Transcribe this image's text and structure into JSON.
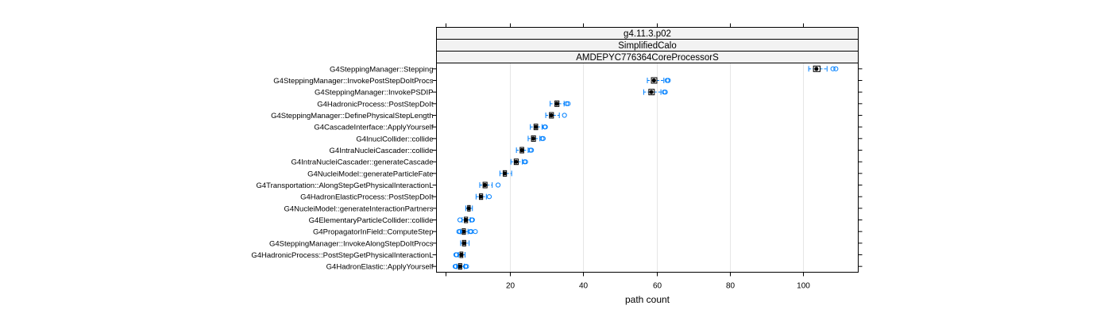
{
  "chart_data": {
    "type": "box",
    "strips": [
      "g4.11.3.p02",
      "SimplifiedCalo",
      "AMDEPYC776364CoreProcessorS"
    ],
    "xlabel": "path count",
    "xlim": [
      0,
      115
    ],
    "xticks": [
      20,
      40,
      60,
      80,
      100
    ],
    "grid": true,
    "colors": {
      "box": "#000000",
      "whisker": "#0080ff",
      "outlier": "#0080ff",
      "grid": "#e6e6e6",
      "strip": "#f2f2f2"
    },
    "categories": [
      "G4SteppingManager::Stepping",
      "G4SteppingManager::InvokePostStepDoItProcs",
      "G4SteppingManager::InvokePSDIP",
      "G4HadronicProcess::PostStepDoIt",
      "G4SteppingManager::DefinePhysicalStepLength",
      "G4CascadeInterface::ApplyYourself",
      "G4InuclCollider::collide",
      "G4IntraNucleiCascader::collide",
      "G4IntraNucleiCascader::generateCascade",
      "G4NucleiModel::generateParticleFate",
      "G4Transportation::AlongStepGetPhysicalInteractionL",
      "G4HadronElasticProcess::PostStepDoIt",
      "G4NucleiModel::generateInteractionPartners",
      "G4ElementaryParticleCollider::collide",
      "G4PropagatorInField::ComputeStep",
      "G4SteppingManager::InvokeAlongStepDoItProcs",
      "G4HadronicProcess::PostStepGetPhysicalInteractionL",
      "G4HadronElastic::ApplyYourself"
    ],
    "boxes": [
      {
        "min": 101.5,
        "q1": 102.8,
        "median": 103.6,
        "q3": 104.6,
        "max": 106.5,
        "outliers": [
          108.1,
          108.9
        ]
      },
      {
        "min": 57.5,
        "q1": 58.6,
        "median": 59.3,
        "q3": 60.1,
        "max": 62.0,
        "outliers": [
          62.9,
          63.2
        ]
      },
      {
        "min": 56.5,
        "q1": 57.9,
        "median": 58.6,
        "q3": 59.4,
        "max": 61.2,
        "outliers": [
          62.1,
          62.4
        ]
      },
      {
        "min": 31.0,
        "q1": 32.3,
        "median": 32.8,
        "q3": 33.4,
        "max": 34.8,
        "outliers": [
          35.5,
          35.9
        ]
      },
      {
        "min": 29.8,
        "q1": 30.8,
        "median": 31.3,
        "q3": 31.9,
        "max": 33.5,
        "outliers": [
          34.9
        ]
      },
      {
        "min": 25.6,
        "q1": 26.6,
        "median": 27.1,
        "q3": 27.6,
        "max": 28.8,
        "outliers": [
          29.5,
          29.7
        ]
      },
      {
        "min": 25.0,
        "q1": 25.9,
        "median": 26.4,
        "q3": 27.0,
        "max": 28.2,
        "outliers": [
          28.8,
          29.1
        ]
      },
      {
        "min": 21.8,
        "q1": 22.8,
        "median": 23.3,
        "q3": 23.8,
        "max": 25.0,
        "outliers": [
          25.6,
          25.9
        ]
      },
      {
        "min": 20.3,
        "q1": 21.2,
        "median": 21.7,
        "q3": 22.3,
        "max": 23.4,
        "outliers": [
          24.0,
          24.3
        ]
      },
      {
        "min": 17.3,
        "q1": 18.2,
        "median": 18.6,
        "q3": 19.1,
        "max": 20.5,
        "outliers": []
      },
      {
        "min": 11.8,
        "q1": 12.7,
        "median": 13.2,
        "q3": 13.8,
        "max": 15.2,
        "outliers": [
          16.8
        ]
      },
      {
        "min": 10.8,
        "q1": 11.7,
        "median": 12.1,
        "q3": 12.6,
        "max": 13.6,
        "outliers": [
          14.4
        ]
      },
      {
        "min": 8.0,
        "q1": 8.5,
        "median": 8.8,
        "q3": 9.2,
        "max": 9.8,
        "outliers": []
      },
      {
        "min": 7.0,
        "q1": 7.6,
        "median": 8.0,
        "q3": 8.5,
        "max": 9.2,
        "outliers": [
          6.4,
          9.6,
          9.8
        ]
      },
      {
        "min": 6.5,
        "q1": 7.0,
        "median": 7.4,
        "q3": 7.9,
        "max": 8.6,
        "outliers": [
          6.1,
          6.4,
          9.2,
          9.5,
          10.6
        ]
      },
      {
        "min": 6.6,
        "q1": 7.1,
        "median": 7.5,
        "q3": 8.0,
        "max": 8.9,
        "outliers": []
      },
      {
        "min": 6.0,
        "q1": 6.4,
        "median": 6.8,
        "q3": 7.2,
        "max": 7.8,
        "outliers": [
          5.3,
          5.5
        ]
      },
      {
        "min": 5.5,
        "q1": 6.0,
        "median": 6.4,
        "q3": 6.9,
        "max": 7.6,
        "outliers": [
          5.1,
          5.3,
          7.9,
          8.2
        ]
      }
    ]
  }
}
